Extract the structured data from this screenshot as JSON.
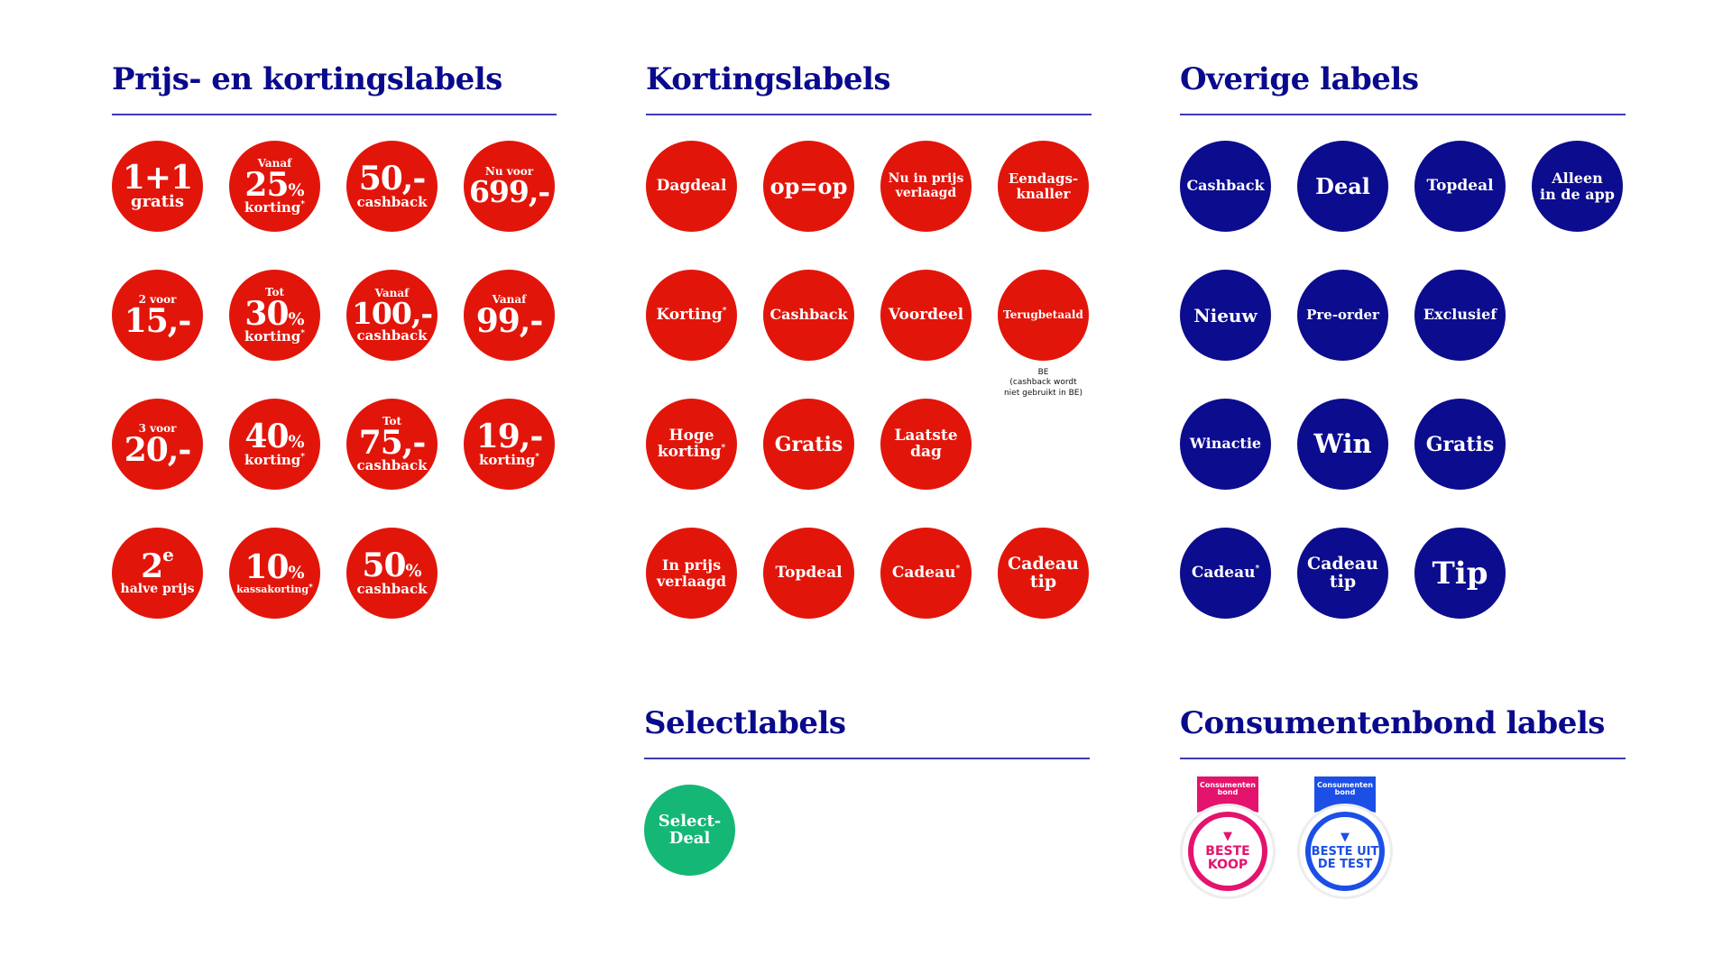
{
  "colors": {
    "heading": "#0a0a8c",
    "rule": "#3b3bb5",
    "red": "#e2150a",
    "blue": "#0c0c8e",
    "green": "#15b777",
    "pink": "#e4136d",
    "royal": "#1c4fe6"
  },
  "prijs": {
    "title": "Prijs- en kortingslabels",
    "b1": {
      "main": "1+1",
      "bottom": "gratis"
    },
    "b2": {
      "top": "Vanaf",
      "main": "25",
      "pct": "%",
      "bottom": "korting",
      "ast": "*"
    },
    "b3": {
      "main": "50,-",
      "bottom": "cashback"
    },
    "b4": {
      "top": "Nu voor",
      "main": "699,-"
    },
    "b5": {
      "top": "2 voor",
      "main": "15,-"
    },
    "b6": {
      "top": "Tot",
      "main": "30",
      "pct": "%",
      "bottom": "korting",
      "ast": "*"
    },
    "b7": {
      "top": "Vanaf",
      "main": "100,-",
      "bottom": "cashback"
    },
    "b8": {
      "top": "Vanaf",
      "main": "99,-"
    },
    "b9": {
      "top": "3 voor",
      "main": "20,-"
    },
    "b10": {
      "main": "40",
      "pct": "%",
      "bottom": "korting",
      "ast": "*"
    },
    "b11": {
      "top": "Tot",
      "main": "75,-",
      "bottom": "cashback"
    },
    "b12": {
      "main": "19,-",
      "bottom": "korting",
      "ast": "*"
    },
    "b13": {
      "main": "2",
      "sup": "e",
      "bottom": "halve prijs"
    },
    "b14": {
      "main": "10",
      "pct": "%",
      "bottom": "kassakorting",
      "ast": "*"
    },
    "b15": {
      "main": "50",
      "pct": "%",
      "bottom": "cashback"
    }
  },
  "korting": {
    "title": "Kortingslabels",
    "k1": "Dagdeal",
    "k2": "op=op",
    "k3": [
      "Nu in prijs",
      "verlaagd"
    ],
    "k4": [
      "Eendags-",
      "knaller"
    ],
    "k5": "Korting",
    "k5_ast": "*",
    "k6": "Cashback",
    "k7": "Voordeel",
    "k8": "Terugbetaald",
    "k8_note": [
      "BE",
      "(cashback wordt",
      "niet gebruikt in BE)"
    ],
    "k9": [
      "Hoge",
      "korting"
    ],
    "k9_ast": "*",
    "k10": "Gratis",
    "k11": [
      "Laatste",
      "dag"
    ],
    "k12": [
      "In prijs",
      "verlaagd"
    ],
    "k13": "Topdeal",
    "k14": "Cadeau",
    "k14_ast": "*",
    "k15": [
      "Cadeau",
      "tip"
    ]
  },
  "overige": {
    "title": "Overige labels",
    "o1": "Cashback",
    "o2": "Deal",
    "o3": "Topdeal",
    "o4": [
      "Alleen",
      "in de app"
    ],
    "o5": "Nieuw",
    "o6": "Pre-order",
    "o7": "Exclusief",
    "o8": "Winactie",
    "o9": "Win",
    "o10": "Gratis",
    "o11": "Cadeau",
    "o11_ast": "*",
    "o12": [
      "Cadeau",
      "tip"
    ],
    "o13": "Tip"
  },
  "select": {
    "title": "Selectlabels",
    "s1": [
      "Select-",
      "Deal"
    ]
  },
  "consumentenbond": {
    "title": "Consumentenbond labels",
    "m1": {
      "ribbon": [
        "Consumenten",
        "bond"
      ],
      "heart_icon": "heart-icon",
      "lines": [
        "BESTE",
        "KOOP"
      ]
    },
    "m2": {
      "ribbon": [
        "Consumenten",
        "bond"
      ],
      "heart_icon": "heart-icon",
      "lines": [
        "BESTE UIT",
        "DE TEST"
      ]
    }
  }
}
